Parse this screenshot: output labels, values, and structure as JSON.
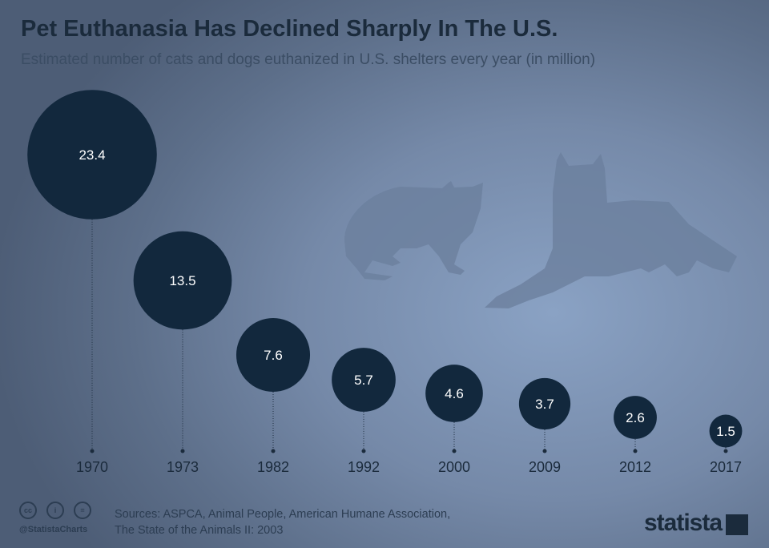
{
  "chart_data": {
    "type": "bubble",
    "title": "Pet Euthanasia Has Declined Sharply In The U.S.",
    "subtitle": "Estimated number of cats and dogs euthanized in U.S. shelters every year (in million)",
    "categories": [
      "1970",
      "1973",
      "1982",
      "1992",
      "2000",
      "2009",
      "2012",
      "2017"
    ],
    "values": [
      23.4,
      13.5,
      7.6,
      5.7,
      4.6,
      3.7,
      2.6,
      1.5
    ],
    "colors": {
      "bubble": "#12283d",
      "label": "#ffffff",
      "axis_text": "#1b2b3c"
    }
  },
  "footer": {
    "sources_line1": "Sources: ASPCA, Animal People, American Humane Association,",
    "sources_line2": "The State of the Animals II: 2003",
    "handle": "@StatistaCharts",
    "logo": "statista",
    "license_icons": [
      "cc",
      "by",
      "nd"
    ]
  }
}
